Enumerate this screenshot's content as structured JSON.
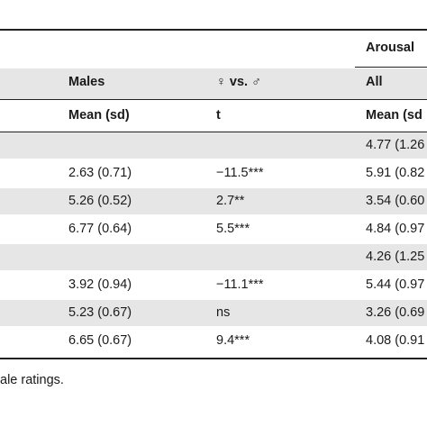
{
  "header": {
    "group_label": "Arousal",
    "columns": [
      {
        "name": "Males",
        "sub": "Mean (sd)"
      },
      {
        "name": "♀ vs. ♂",
        "sub": "t"
      },
      {
        "name": "All",
        "sub": "Mean (sd"
      }
    ]
  },
  "rows": [
    {
      "males": "",
      "t": "",
      "all": "4.77 (1.26"
    },
    {
      "males": "2.63 (0.71)",
      "t": "−11.5***",
      "all": "5.91 (0.82"
    },
    {
      "males": "5.26 (0.52)",
      "t": "2.7**",
      "all": "3.54 (0.60"
    },
    {
      "males": "6.77 (0.64)",
      "t": "5.5***",
      "all": "4.84 (0.97"
    },
    {
      "males": "",
      "t": "",
      "all": "4.26 (1.25"
    },
    {
      "males": "3.92 (0.94)",
      "t": "−11.1***",
      "all": "5.44 (0.97"
    },
    {
      "males": "5.23 (0.67)",
      "t": "ns",
      "all": "3.26 (0.69"
    },
    {
      "males": "6.65 (0.67)",
      "t": "9.4***",
      "all": "4.08 (0.91"
    }
  ],
  "footnote": "ale ratings."
}
